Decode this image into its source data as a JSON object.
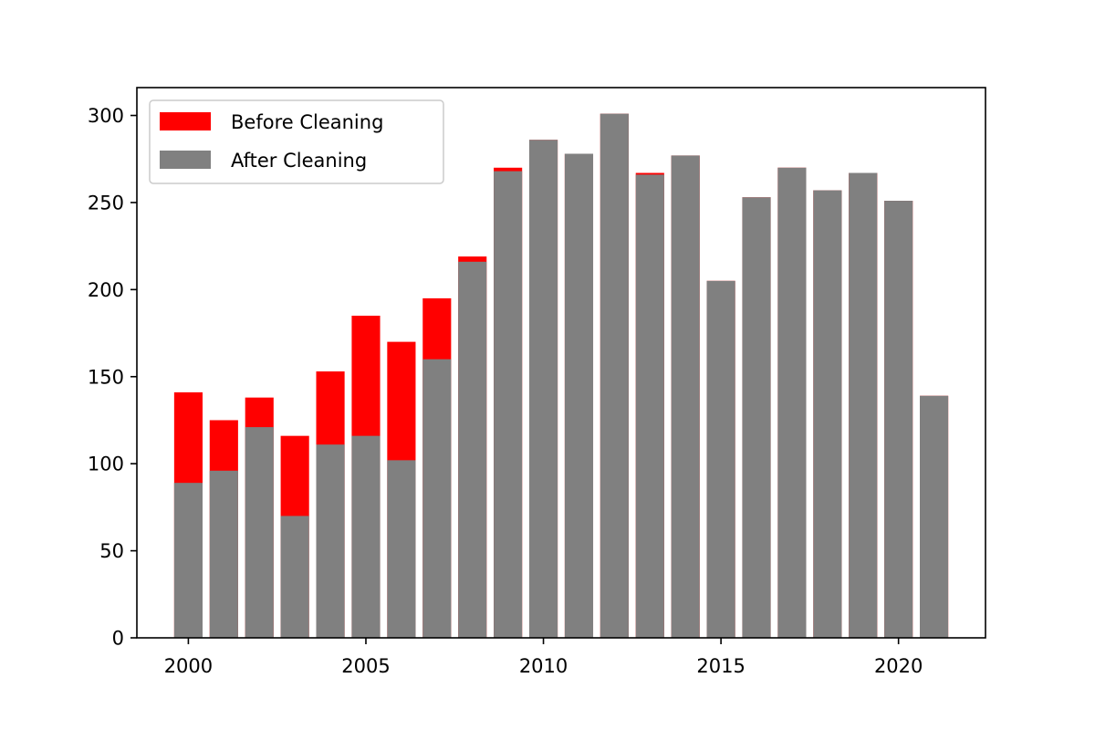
{
  "chart_data": {
    "type": "bar",
    "x": [
      2000,
      2001,
      2002,
      2003,
      2004,
      2005,
      2006,
      2007,
      2008,
      2009,
      2010,
      2011,
      2012,
      2013,
      2014,
      2015,
      2016,
      2017,
      2018,
      2019,
      2020,
      2021
    ],
    "series": [
      {
        "name": "Before Cleaning",
        "color": "#ff0000",
        "values": [
          141,
          125,
          138,
          116,
          153,
          185,
          170,
          195,
          219,
          270,
          286,
          278,
          301,
          267,
          277,
          205,
          253,
          270,
          257,
          267,
          251,
          139
        ]
      },
      {
        "name": "After Cleaning",
        "color": "#808080",
        "values": [
          89,
          96,
          121,
          70,
          111,
          116,
          102,
          160,
          216,
          268,
          286,
          278,
          301,
          266,
          277,
          205,
          253,
          270,
          257,
          267,
          251,
          139
        ]
      }
    ],
    "xlim": [
      1998.55,
      2022.45
    ],
    "ylim": [
      0,
      316
    ],
    "xticks": [
      2000,
      2005,
      2010,
      2015,
      2020
    ],
    "yticks": [
      0,
      50,
      100,
      150,
      200,
      250,
      300
    ],
    "title": "",
    "xlabel": "",
    "ylabel": "",
    "legend_position": "upper-left",
    "grid": false,
    "overlay": true
  }
}
